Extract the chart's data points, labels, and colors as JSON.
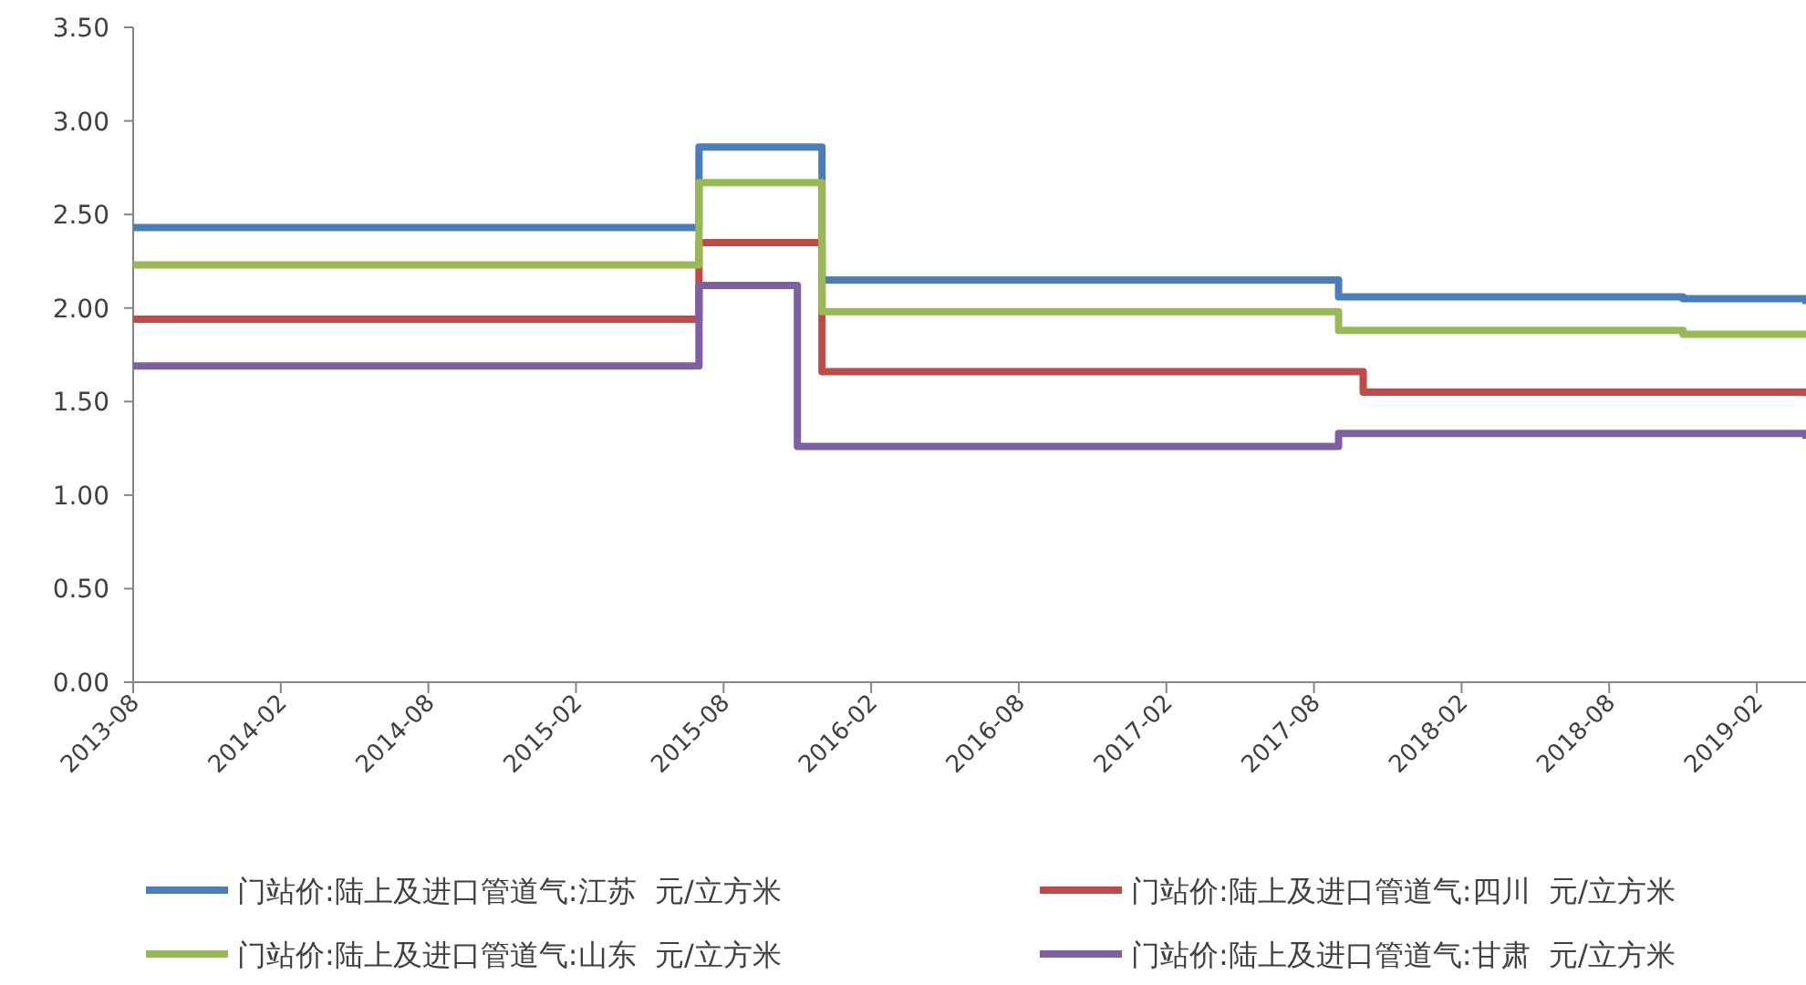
{
  "chart_data": {
    "type": "step",
    "xlim": [
      "2013-08",
      "2019-04"
    ],
    "xticks": [
      "2013-08",
      "2014-02",
      "2014-08",
      "2015-02",
      "2015-08",
      "2016-02",
      "2016-08",
      "2017-02",
      "2017-08",
      "2018-02",
      "2018-08",
      "2019-02"
    ],
    "ylim": [
      0,
      3.5
    ],
    "yticks": [
      {
        "value": 0,
        "label": "0.00"
      },
      {
        "value": 0.5,
        "label": "0.50"
      },
      {
        "value": 1,
        "label": "1.00"
      },
      {
        "value": 1.5,
        "label": "1.50"
      },
      {
        "value": 2,
        "label": "2.00"
      },
      {
        "value": 2.5,
        "label": "2.50"
      },
      {
        "value": 3,
        "label": "3.00"
      },
      {
        "value": 3.5,
        "label": "3.50"
      }
    ],
    "grid": false,
    "legend": "bottom",
    "line_style": "solid",
    "series": [
      {
        "name": "门站价:陆上及进口管道气:江苏  元/立方米",
        "color": "#4a7ebb",
        "x": [
          "2013-08",
          "2015-07",
          "2015-12",
          "2017-09",
          "2018-11",
          "2019-04"
        ],
        "values": [
          2.43,
          2.86,
          2.15,
          2.06,
          2.05,
          2.02
        ]
      },
      {
        "name": "门站价:陆上及进口管道气:四川  元/立方米",
        "color": "#be4b48",
        "x": [
          "2013-08",
          "2015-07",
          "2015-12",
          "2017-10",
          "2019-04"
        ],
        "values": [
          1.94,
          2.35,
          1.66,
          1.55,
          1.53
        ]
      },
      {
        "name": "门站价:陆上及进口管道气:山东  元/立方米",
        "color": "#98b954",
        "x": [
          "2013-08",
          "2015-07",
          "2015-12",
          "2017-09",
          "2018-11",
          "2019-04"
        ],
        "values": [
          2.23,
          2.67,
          1.98,
          1.88,
          1.86,
          1.84
        ]
      },
      {
        "name": "门站价:陆上及进口管道气:甘肃  元/立方米",
        "color": "#7d60a0",
        "x": [
          "2013-08",
          "2015-07",
          "2015-11",
          "2017-09",
          "2019-04"
        ],
        "values": [
          1.69,
          2.12,
          1.26,
          1.33,
          1.3
        ]
      }
    ]
  }
}
